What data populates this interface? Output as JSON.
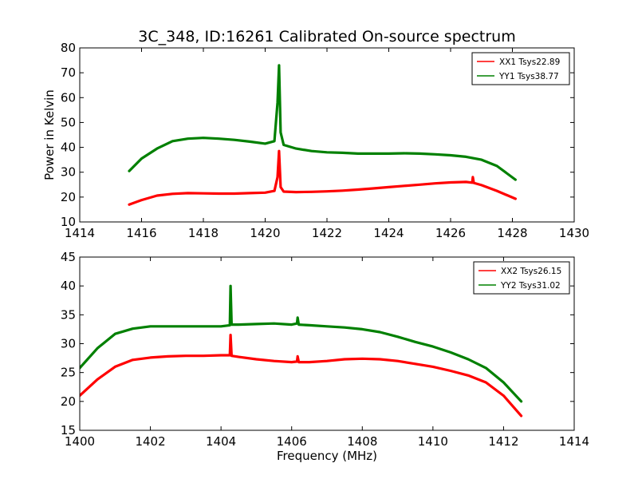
{
  "figure": {
    "title": "3C_348, ID:16261 Calibrated On-source spectrum"
  },
  "chart_data": [
    {
      "type": "line",
      "title": "3C_348, ID:16261 Calibrated On-source spectrum",
      "xlabel": "",
      "ylabel": "Power in Kelvin",
      "xlim": [
        1414,
        1430
      ],
      "ylim": [
        10,
        80
      ],
      "xticks": [
        "1414",
        "1416",
        "1418",
        "1420",
        "1422",
        "1424",
        "1426",
        "1428",
        "1430"
      ],
      "yticks": [
        "10",
        "20",
        "30",
        "40",
        "50",
        "60",
        "70",
        "80"
      ],
      "legend_position": "top-right",
      "grid": false,
      "series": [
        {
          "name": "XX1 Tsys22.89",
          "color": "#ff0000",
          "x": [
            1415.6,
            1416.0,
            1416.5,
            1417.0,
            1417.5,
            1418.0,
            1418.5,
            1419.0,
            1419.5,
            1420.0,
            1420.3,
            1420.4,
            1420.45,
            1420.5,
            1420.6,
            1421.0,
            1421.5,
            1422.0,
            1422.5,
            1423.0,
            1423.5,
            1424.0,
            1424.5,
            1425.0,
            1425.5,
            1426.0,
            1426.5,
            1426.7,
            1426.72,
            1426.75,
            1427.0,
            1427.5,
            1428.1
          ],
          "y": [
            17.0,
            18.8,
            20.6,
            21.3,
            21.6,
            21.5,
            21.4,
            21.4,
            21.6,
            21.8,
            22.5,
            28.0,
            38.5,
            24.0,
            22.2,
            22.0,
            22.1,
            22.3,
            22.6,
            23.0,
            23.5,
            24.0,
            24.5,
            25.0,
            25.5,
            25.9,
            26.1,
            25.8,
            28.0,
            25.7,
            24.8,
            22.5,
            19.3
          ]
        },
        {
          "name": "YY1 Tsys38.77",
          "color": "#008000",
          "x": [
            1415.6,
            1416.0,
            1416.5,
            1417.0,
            1417.5,
            1418.0,
            1418.5,
            1419.0,
            1419.5,
            1420.0,
            1420.3,
            1420.4,
            1420.45,
            1420.5,
            1420.6,
            1421.0,
            1421.5,
            1422.0,
            1422.5,
            1423.0,
            1423.5,
            1424.0,
            1424.5,
            1425.0,
            1425.5,
            1426.0,
            1426.5,
            1427.0,
            1427.5,
            1428.1
          ],
          "y": [
            30.5,
            35.5,
            39.5,
            42.5,
            43.5,
            43.8,
            43.5,
            43.0,
            42.3,
            41.5,
            42.5,
            58.0,
            73.0,
            46.0,
            41.0,
            39.5,
            38.5,
            38.0,
            37.8,
            37.5,
            37.5,
            37.5,
            37.6,
            37.5,
            37.2,
            36.8,
            36.2,
            35.0,
            32.5,
            27.0
          ]
        }
      ]
    },
    {
      "type": "line",
      "title": "",
      "xlabel": "Frequency (MHz)",
      "ylabel": "",
      "xlim": [
        1400,
        1414
      ],
      "ylim": [
        15,
        45
      ],
      "xticks": [
        "1400",
        "1402",
        "1404",
        "1406",
        "1408",
        "1410",
        "1412",
        "1414"
      ],
      "yticks": [
        "15",
        "20",
        "25",
        "30",
        "35",
        "40",
        "45"
      ],
      "legend_position": "top-right",
      "grid": false,
      "series": [
        {
          "name": "XX2 Tsys26.15",
          "color": "#ff0000",
          "x": [
            1400.0,
            1400.5,
            1401.0,
            1401.5,
            1402.0,
            1402.5,
            1403.0,
            1403.5,
            1404.0,
            1404.25,
            1404.27,
            1404.3,
            1404.5,
            1405.0,
            1405.5,
            1406.0,
            1406.15,
            1406.17,
            1406.2,
            1406.5,
            1407.0,
            1407.5,
            1408.0,
            1408.5,
            1409.0,
            1409.5,
            1410.0,
            1410.5,
            1411.0,
            1411.5,
            1412.0,
            1412.5
          ],
          "y": [
            21.0,
            23.8,
            26.0,
            27.2,
            27.6,
            27.8,
            27.9,
            27.9,
            28.0,
            28.0,
            31.5,
            27.9,
            27.7,
            27.3,
            27.0,
            26.8,
            26.9,
            27.8,
            26.8,
            26.8,
            27.0,
            27.3,
            27.4,
            27.3,
            27.0,
            26.5,
            26.0,
            25.3,
            24.5,
            23.3,
            21.0,
            17.5
          ]
        },
        {
          "name": "YY2 Tsys31.02",
          "color": "#008000",
          "x": [
            1400.0,
            1400.5,
            1401.0,
            1401.5,
            1402.0,
            1402.5,
            1403.0,
            1403.5,
            1404.0,
            1404.25,
            1404.27,
            1404.3,
            1404.5,
            1405.0,
            1405.5,
            1406.0,
            1406.15,
            1406.17,
            1406.2,
            1406.5,
            1407.0,
            1407.5,
            1408.0,
            1408.5,
            1409.0,
            1409.5,
            1410.0,
            1410.5,
            1411.0,
            1411.5,
            1412.0,
            1412.5
          ],
          "y": [
            25.8,
            29.2,
            31.7,
            32.6,
            33.0,
            33.0,
            33.0,
            33.0,
            33.0,
            33.2,
            40.0,
            33.3,
            33.3,
            33.4,
            33.5,
            33.3,
            33.5,
            34.5,
            33.3,
            33.2,
            33.0,
            32.8,
            32.5,
            32.0,
            31.2,
            30.3,
            29.5,
            28.5,
            27.3,
            25.8,
            23.3,
            20.0
          ]
        }
      ]
    }
  ]
}
